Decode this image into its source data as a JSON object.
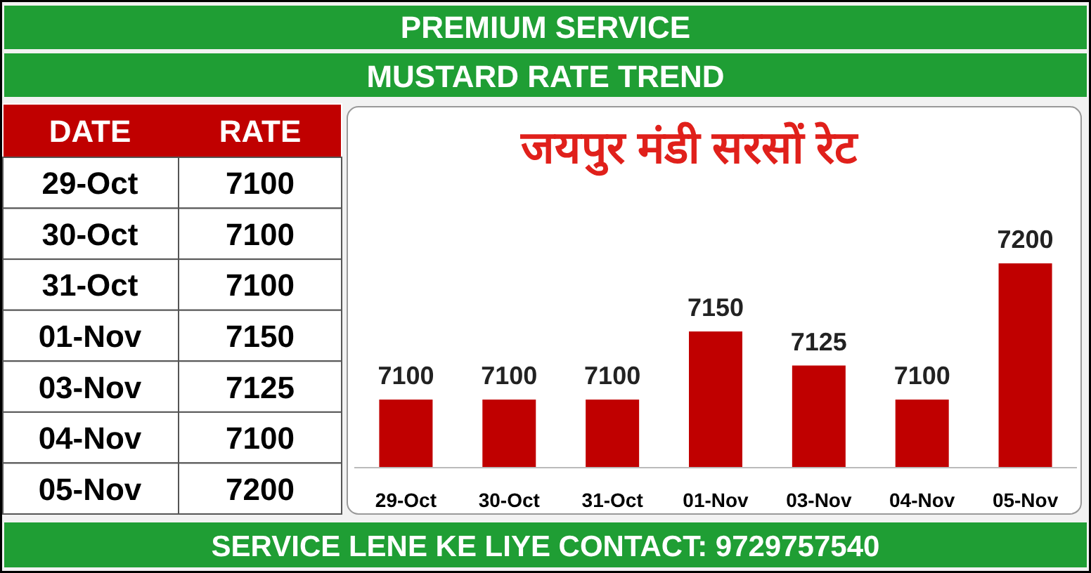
{
  "chart_data": [
    {
      "type": "bar",
      "title": "जयपुर मंडी सरसों रेट",
      "subtitle": "MUSTARD RATE TREND",
      "categories": [
        "29-Oct",
        "30-Oct",
        "31-Oct",
        "01-Nov",
        "03-Nov",
        "04-Nov",
        "05-Nov"
      ],
      "values": [
        7100,
        7100,
        7100,
        7150,
        7125,
        7100,
        7200
      ],
      "color": "#c00000",
      "ylim": [
        7050,
        7315
      ],
      "data_labels": true,
      "annotations": [
        "PREMIUM SERVICE",
        "SERVICE LENE KE LIYE CONTACT: 9729757540"
      ]
    },
    {
      "type": "other",
      "categories": [
        "29-Oct",
        "30-Oct",
        "31-Oct",
        "01-Nov",
        "03-Nov",
        "04-Nov",
        "05-Nov"
      ],
      "values": [
        7100,
        7100,
        7100,
        7150,
        7125,
        7100,
        7200
      ],
      "data_labels": true,
      "annotations": [
        "DATE",
        "RATE"
      ]
    }
  ]
}
